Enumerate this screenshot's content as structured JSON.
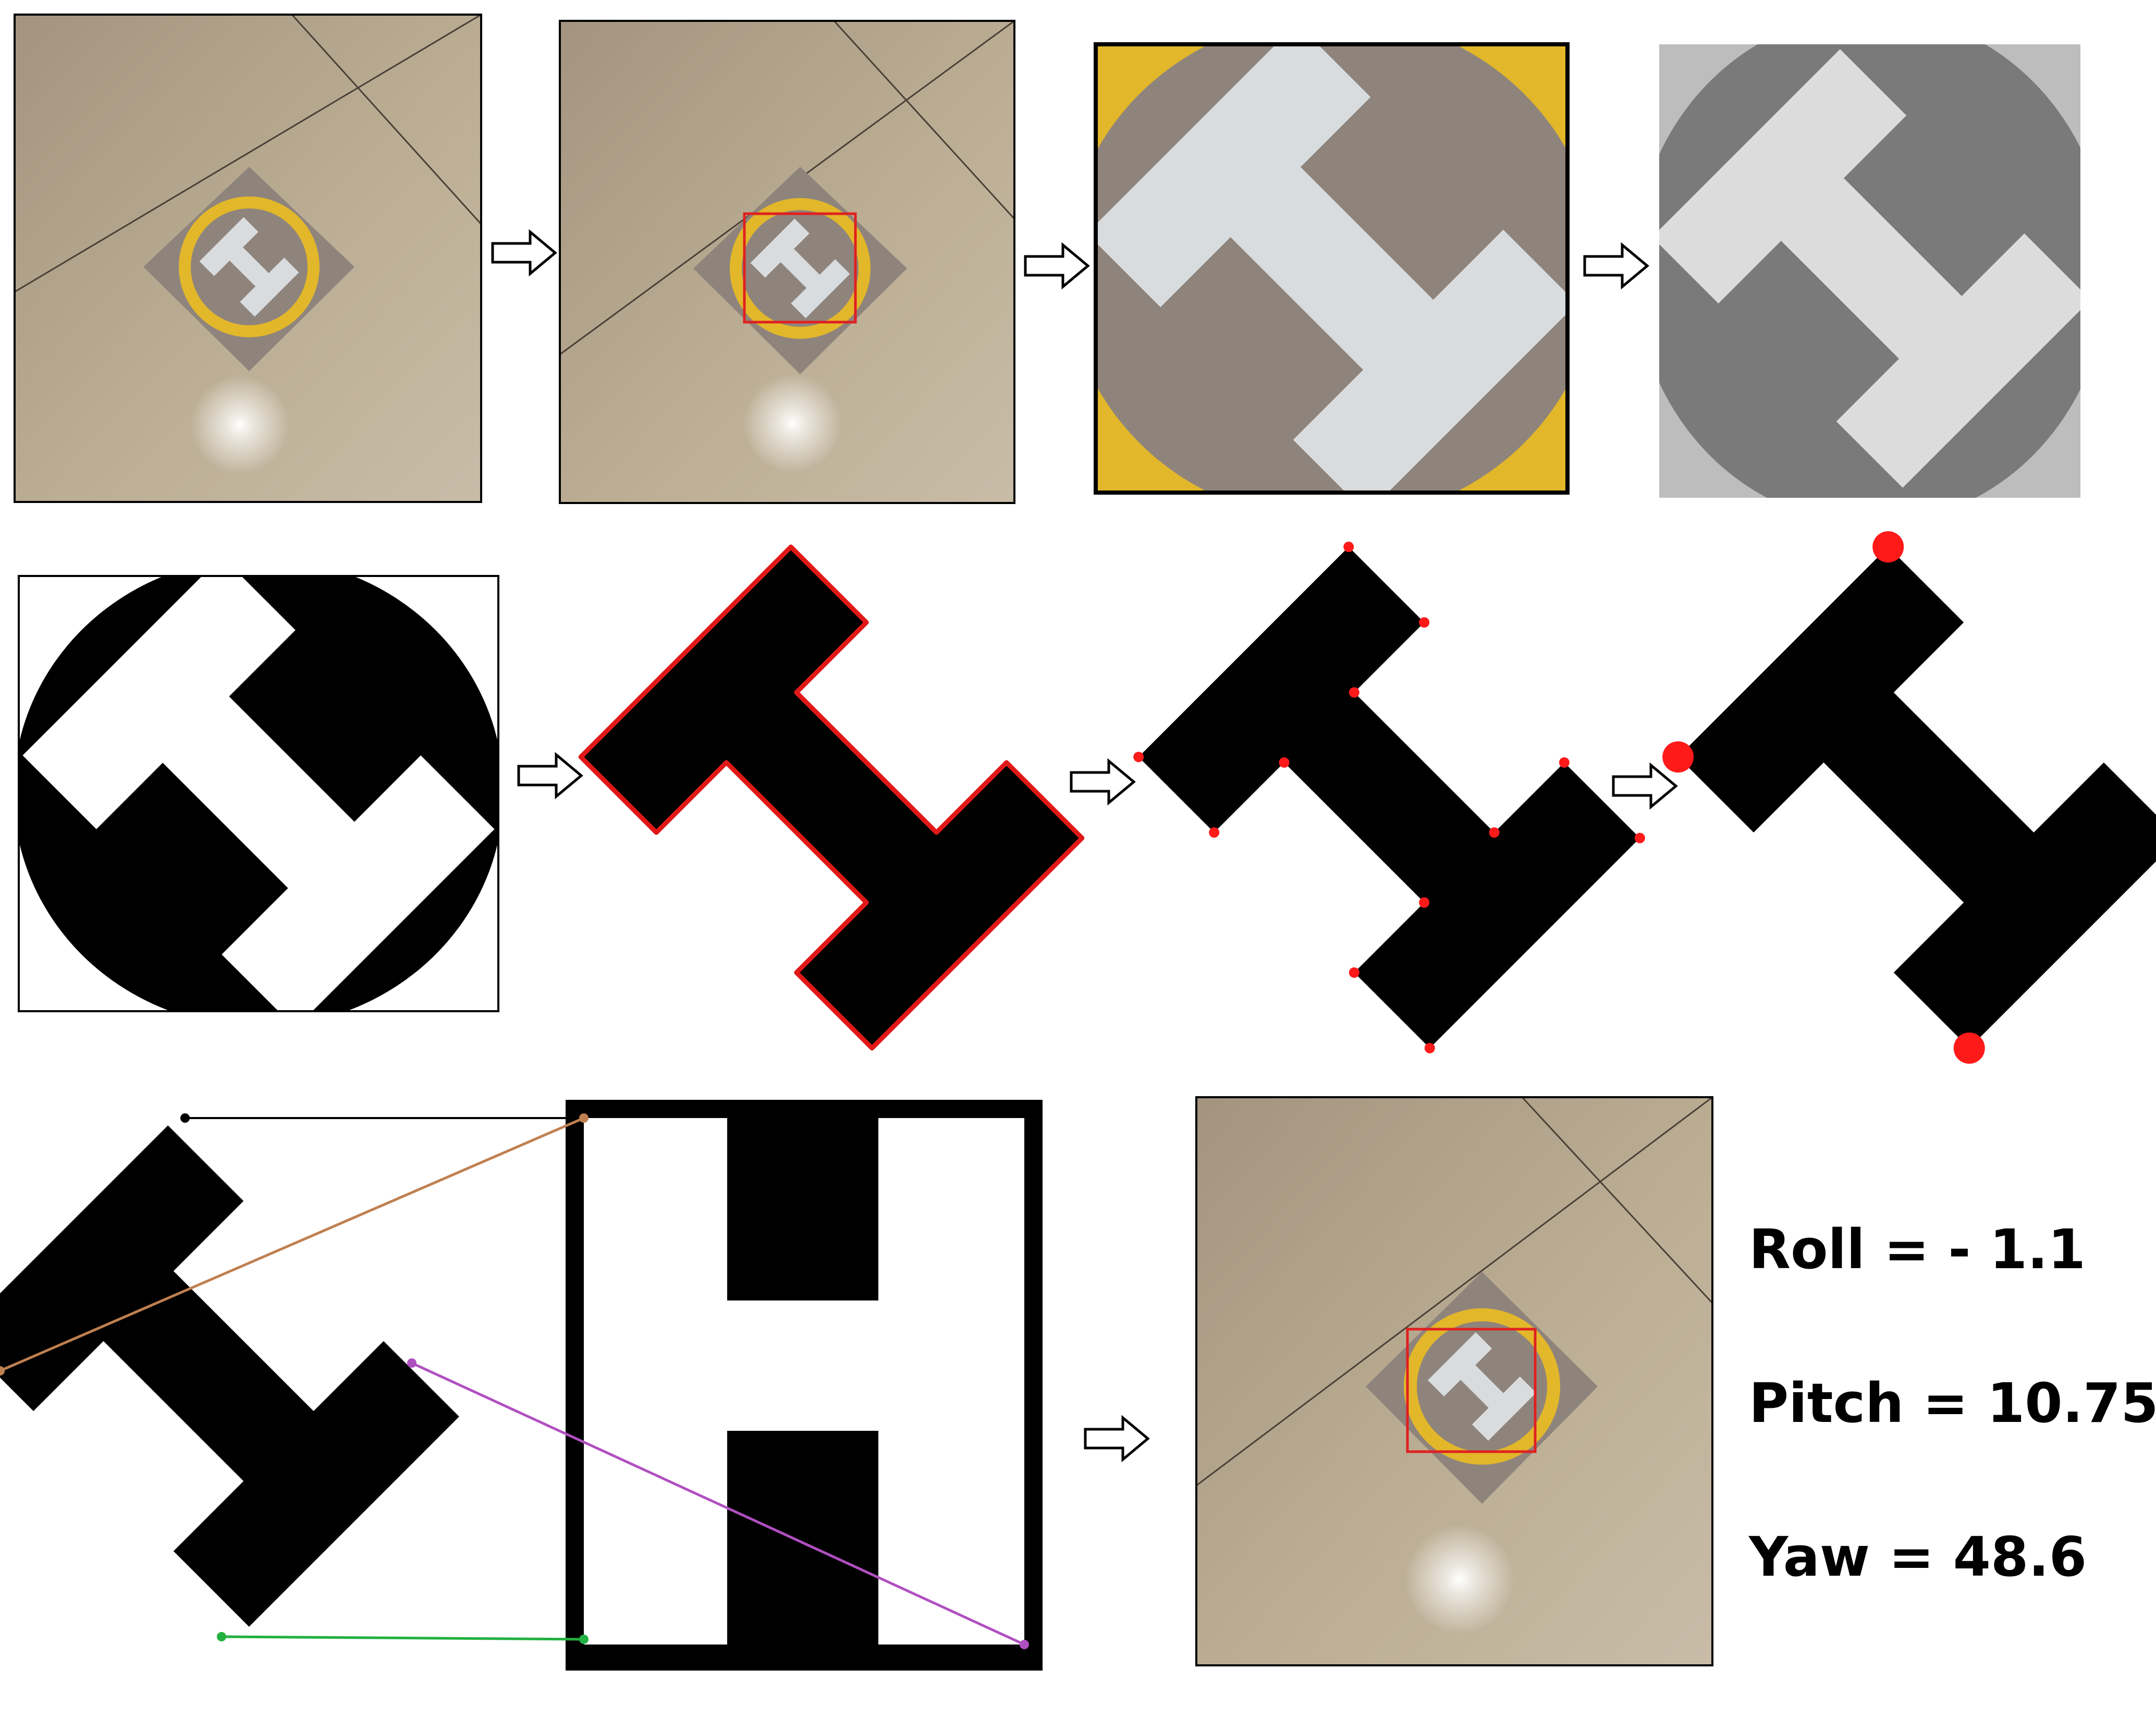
{
  "pipeline": {
    "stages": [
      {
        "id": "input-photo",
        "kind": "photo"
      },
      {
        "id": "detected-roi",
        "kind": "photo-with-box"
      },
      {
        "id": "cropped-roi",
        "kind": "color-crop"
      },
      {
        "id": "grayscale",
        "kind": "grayscale"
      },
      {
        "id": "binary",
        "kind": "binary"
      },
      {
        "id": "contour",
        "kind": "contour"
      },
      {
        "id": "corner-points",
        "kind": "corners"
      },
      {
        "id": "extreme-corners",
        "kind": "four-points"
      },
      {
        "id": "homography-match",
        "kind": "correspondence"
      },
      {
        "id": "final-result",
        "kind": "photo-with-box"
      }
    ],
    "colors": {
      "floor": "#b5a68c",
      "pad_gray": "#8f847c",
      "ring_yellow": "#e2b72a",
      "marker_white": "#d8dcde",
      "roi_box": "#e02020",
      "points": "#ff1a1a",
      "line_brown": "#c08050",
      "line_purple": "#b050c0",
      "line_green": "#22b040"
    },
    "icons": [
      "right-arrow-icon"
    ]
  },
  "results": {
    "roll": "Roll = - 1.1",
    "pitch": "Pitch = 10.75",
    "yaw": "Yaw = 48.6"
  }
}
